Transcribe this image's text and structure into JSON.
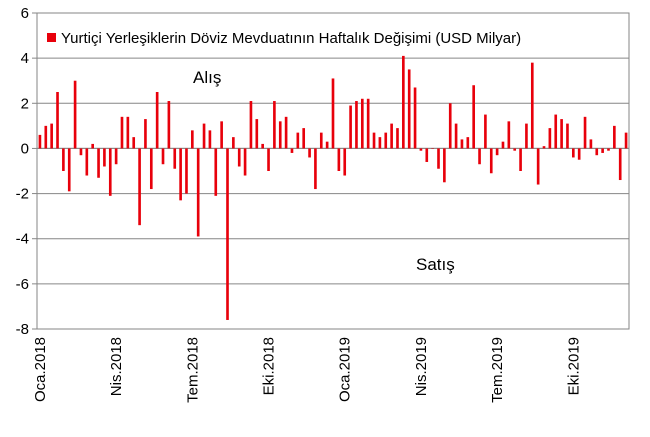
{
  "chart_data": {
    "type": "bar",
    "title": "",
    "xlabel": "",
    "ylabel": "",
    "ylim": [
      -8,
      6
    ],
    "y_ticks": [
      6,
      4,
      2,
      0,
      -2,
      -4,
      -6,
      -8
    ],
    "grid": "horizontal",
    "legend_position": "top",
    "x_tick_labels": [
      "Oca.2018",
      "Nis.2018",
      "Tem.2018",
      "Eki.2018",
      "Oca.2019",
      "Nis.2019",
      "Tem.2019",
      "Eki.2019"
    ],
    "x_tick_indices": [
      0,
      13,
      26,
      39,
      52,
      65,
      78,
      91
    ],
    "annotations": [
      "Alış",
      "Satış"
    ],
    "series": [
      {
        "name": "Yurtiçi Yerleşiklerin Döviz Mevduatının Haftalık Değişimi (USD Milyar)",
        "color": "#e8000b",
        "values": [
          0.6,
          1.0,
          1.1,
          2.5,
          -1.0,
          -1.9,
          3.0,
          -0.3,
          -1.2,
          0.2,
          -1.3,
          -0.8,
          -2.1,
          -0.7,
          1.4,
          1.4,
          0.5,
          -3.4,
          1.3,
          -1.8,
          2.5,
          -0.7,
          2.1,
          -0.9,
          -2.3,
          -2.0,
          0.8,
          -3.9,
          1.1,
          0.8,
          -2.1,
          1.2,
          -7.6,
          0.5,
          -0.8,
          -1.2,
          2.1,
          1.3,
          0.2,
          -1.0,
          2.1,
          1.2,
          1.4,
          -0.2,
          0.7,
          0.9,
          -0.4,
          -1.8,
          0.7,
          0.3,
          3.1,
          -1.0,
          -1.2,
          1.9,
          2.1,
          2.2,
          2.2,
          0.7,
          0.5,
          0.7,
          1.1,
          0.9,
          4.1,
          3.5,
          2.7,
          -0.1,
          -0.6,
          0.0,
          -0.9,
          -1.5,
          2.0,
          1.1,
          0.4,
          0.5,
          2.8,
          -0.7,
          1.5,
          -1.1,
          -0.3,
          0.3,
          1.2,
          -0.1,
          -1.0,
          1.1,
          3.8,
          -1.6,
          0.1,
          0.9,
          1.5,
          1.3,
          1.1,
          -0.4,
          -0.5,
          1.4,
          0.4,
          -0.3,
          -0.2,
          -0.1,
          1.0,
          -1.4,
          0.7
        ]
      }
    ]
  }
}
